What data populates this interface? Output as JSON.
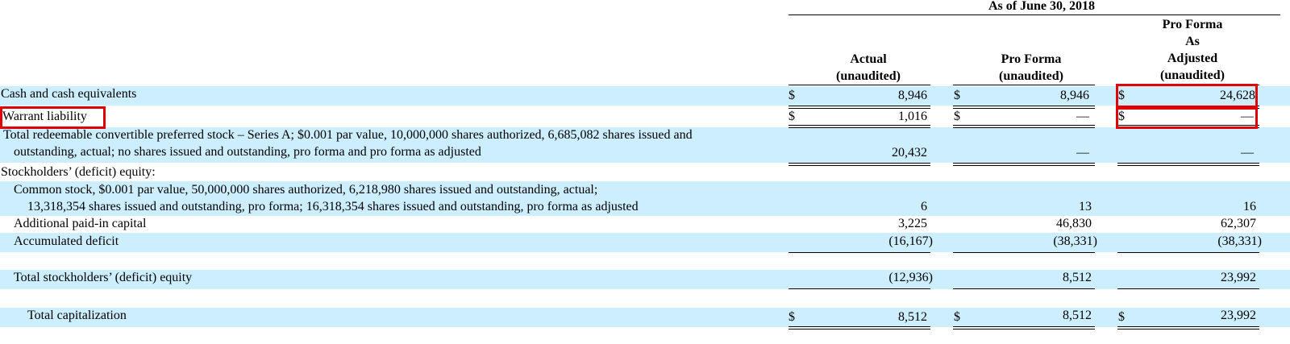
{
  "header": {
    "period": "As of June 30, 2018",
    "columns": [
      {
        "lines": [
          "Actual",
          "(unaudited)"
        ]
      },
      {
        "lines": [
          "Pro Forma",
          "(unaudited)"
        ]
      },
      {
        "lines": [
          "Pro Forma",
          "As",
          "Adjusted",
          "(unaudited)"
        ]
      }
    ]
  },
  "currency_symbol": "$",
  "rows": {
    "cash": {
      "label": "Cash and cash equivalents",
      "values": [
        "8,946",
        "8,946",
        "24,628"
      ]
    },
    "warrant": {
      "label": "Warrant liability",
      "values": [
        "1,016",
        "—",
        "—"
      ]
    },
    "preferred": {
      "label_line1": "Total redeemable convertible preferred stock – Series A; $0.001 par value, 10,000,000 shares authorized, 6,685,082 shares issued and",
      "label_line2": "outstanding, actual; no shares issued and outstanding, pro forma and pro forma as adjusted",
      "values": [
        "20,432",
        "—",
        "—"
      ]
    },
    "equity_heading": {
      "label": "Stockholders’ (deficit) equity:"
    },
    "common": {
      "label_line1": "Common stock, $0.001 par value, 50,000,000 shares authorized, 6,218,980 shares issued and outstanding, actual;",
      "label_line2": "13,318,354 shares issued and outstanding, pro forma; 16,318,354 shares issued and outstanding, pro forma as adjusted",
      "values": [
        "6",
        "13",
        "16"
      ]
    },
    "apic": {
      "label": "Additional paid-in capital",
      "values": [
        "3,225",
        "46,830",
        "62,307"
      ]
    },
    "deficit": {
      "label": "Accumulated deficit",
      "values": [
        "(16,167)",
        "(38,331)",
        "(38,331)"
      ]
    },
    "total_equity": {
      "label": "Total stockholders’ (deficit) equity",
      "values": [
        "(12,936)",
        "8,512",
        "23,992"
      ]
    },
    "total_cap": {
      "label": "Total capitalization",
      "values": [
        "8,512",
        "8,512",
        "23,992"
      ]
    }
  },
  "highlight_color": "#e00000",
  "band_color": "#cceeff"
}
